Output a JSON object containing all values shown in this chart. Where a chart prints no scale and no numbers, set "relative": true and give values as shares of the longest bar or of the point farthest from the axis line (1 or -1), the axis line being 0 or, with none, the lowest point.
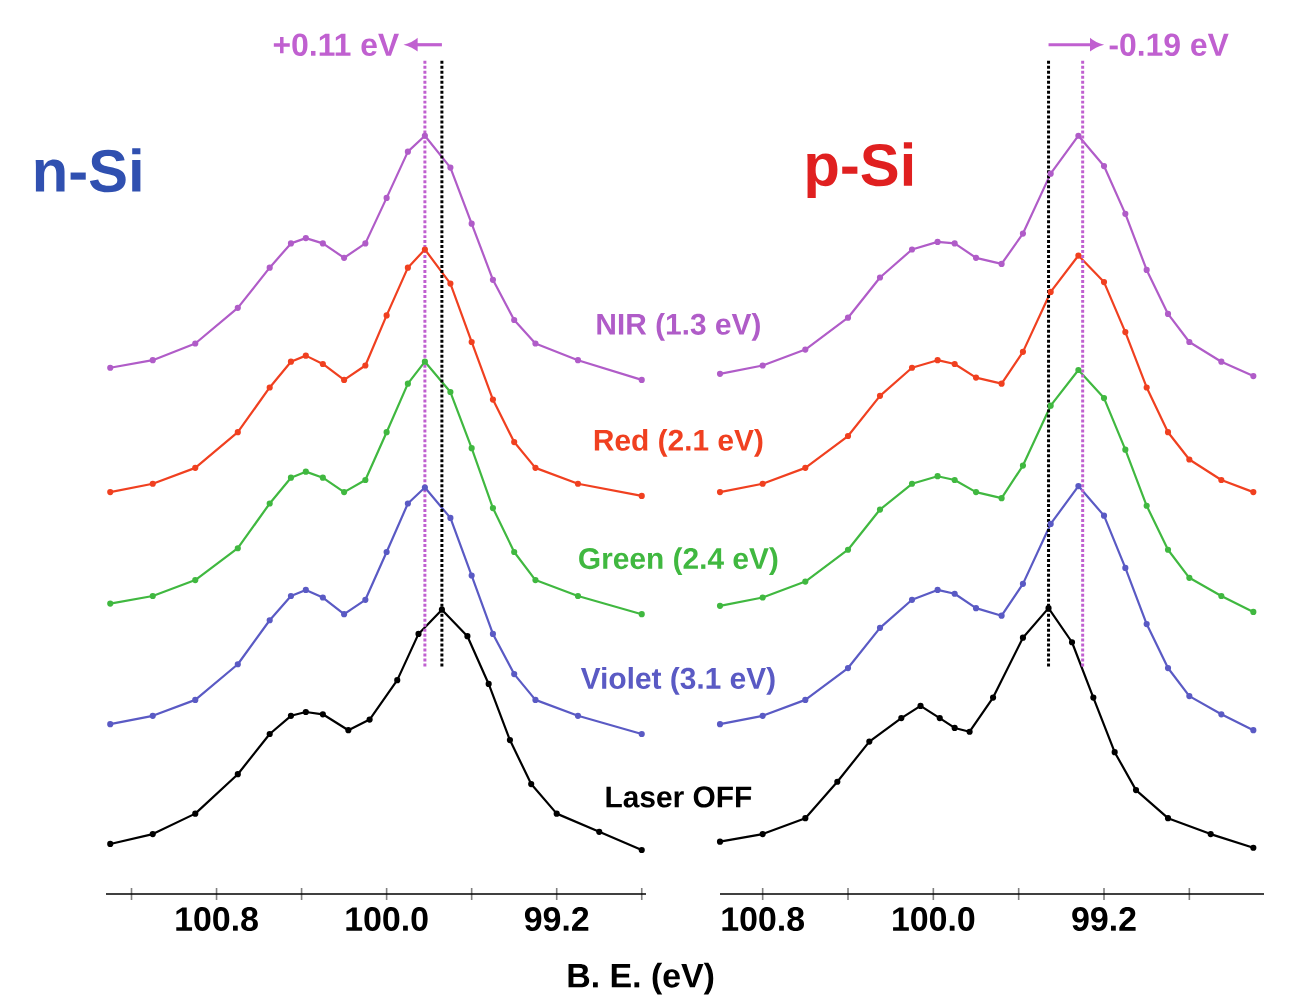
{
  "chart_data": [
    {
      "type": "line",
      "title": "n-Si",
      "xlabel": "B. E. (eV)",
      "relative": true,
      "marker": "circle",
      "line_style": "solid",
      "xlim": [
        101.32,
        98.78
      ],
      "xticks": [
        {
          "value": 101.2,
          "label": null
        },
        {
          "value": 100.8,
          "label": "100.8"
        },
        {
          "value": 100.4,
          "label": null
        },
        {
          "value": 100,
          "label": "100.0"
        },
        {
          "value": 99.6,
          "label": null
        },
        {
          "value": 99.2,
          "label": "99.2"
        },
        {
          "value": 98.8,
          "label": null
        }
      ],
      "x": [
        101.3,
        101.1,
        100.9,
        100.7,
        100.55,
        100.45,
        100.38,
        100.3,
        100.2,
        100.1,
        100.0,
        99.9,
        99.82,
        99.7,
        99.6,
        99.5,
        99.4,
        99.3,
        99.1,
        98.8
      ],
      "series": [
        {
          "name": "NIR (1.3 eV)",
          "color": "#b05cc8",
          "values": [
            0.694,
            0.704,
            0.726,
            0.773,
            0.826,
            0.858,
            0.865,
            0.858,
            0.839,
            0.858,
            0.918,
            0.979,
            1.0,
            0.958,
            0.884,
            0.81,
            0.757,
            0.726,
            0.704,
            0.678
          ]
        },
        {
          "name": "Red (2.1 eV)",
          "color": "#f04020",
          "values": [
            0.53,
            0.541,
            0.562,
            0.609,
            0.668,
            0.702,
            0.71,
            0.699,
            0.678,
            0.697,
            0.763,
            0.826,
            0.85,
            0.805,
            0.728,
            0.652,
            0.596,
            0.562,
            0.541,
            0.525
          ]
        },
        {
          "name": "Green (2.4 eV)",
          "color": "#40b840",
          "values": [
            0.383,
            0.393,
            0.414,
            0.456,
            0.515,
            0.549,
            0.557,
            0.549,
            0.53,
            0.546,
            0.609,
            0.673,
            0.702,
            0.662,
            0.588,
            0.509,
            0.451,
            0.414,
            0.393,
            0.369
          ]
        },
        {
          "name": "Violet (3.1 eV)",
          "color": "#5a5ac4",
          "values": [
            0.224,
            0.235,
            0.256,
            0.303,
            0.361,
            0.393,
            0.401,
            0.391,
            0.369,
            0.388,
            0.451,
            0.515,
            0.536,
            0.496,
            0.42,
            0.343,
            0.29,
            0.256,
            0.235,
            0.211
          ]
        },
        {
          "name": "Laser OFF",
          "color": "#000000",
          "x": [
            101.3,
            101.1,
            100.9,
            100.7,
            100.55,
            100.45,
            100.38,
            100.3,
            100.18,
            100.08,
            99.95,
            99.85,
            99.74,
            99.62,
            99.52,
            99.42,
            99.32,
            99.2,
            99.0,
            98.8
          ],
          "values": [
            0.066,
            0.079,
            0.106,
            0.158,
            0.211,
            0.235,
            0.24,
            0.237,
            0.216,
            0.23,
            0.282,
            0.343,
            0.375,
            0.34,
            0.277,
            0.203,
            0.145,
            0.106,
            0.082,
            0.058
          ]
        }
      ],
      "ref_lines": [
        {
          "axis": "x",
          "value": 99.74,
          "color": "#000000",
          "line_style": "dotted"
        },
        {
          "axis": "x",
          "value": 99.82,
          "color": "#c060d0",
          "line_style": "dotted"
        }
      ],
      "annotations": [
        "+0.11 eV"
      ]
    },
    {
      "type": "line",
      "title": "p-Si",
      "relative": true,
      "marker": "circle",
      "line_style": "solid",
      "xlim": [
        101.0,
        98.45
      ],
      "xticks": [
        {
          "value": 100.8,
          "label": "100.8"
        },
        {
          "value": 100.4,
          "label": null
        },
        {
          "value": 100,
          "label": "100.0"
        },
        {
          "value": 99.6,
          "label": null
        },
        {
          "value": 99.2,
          "label": "99.2"
        },
        {
          "value": 98.8,
          "label": null
        }
      ],
      "x": [
        101.0,
        100.8,
        100.6,
        100.4,
        100.25,
        100.1,
        99.98,
        99.9,
        99.8,
        99.68,
        99.58,
        99.45,
        99.32,
        99.2,
        99.1,
        99.0,
        98.9,
        98.8,
        98.65,
        98.5
      ],
      "series": [
        {
          "color": "#b05cc8",
          "values": [
            0.686,
            0.697,
            0.718,
            0.76,
            0.813,
            0.85,
            0.86,
            0.858,
            0.839,
            0.831,
            0.871,
            0.95,
            1.0,
            0.96,
            0.897,
            0.823,
            0.765,
            0.728,
            0.702,
            0.683
          ]
        },
        {
          "color": "#f04020",
          "values": [
            0.53,
            0.541,
            0.562,
            0.604,
            0.657,
            0.694,
            0.704,
            0.699,
            0.681,
            0.673,
            0.715,
            0.794,
            0.842,
            0.807,
            0.741,
            0.668,
            0.609,
            0.573,
            0.546,
            0.53
          ]
        },
        {
          "color": "#40b840",
          "values": [
            0.38,
            0.391,
            0.412,
            0.454,
            0.507,
            0.541,
            0.551,
            0.546,
            0.53,
            0.522,
            0.565,
            0.644,
            0.691,
            0.654,
            0.586,
            0.512,
            0.454,
            0.417,
            0.393,
            0.372
          ]
        },
        {
          "color": "#5a5ac4",
          "values": [
            0.224,
            0.235,
            0.256,
            0.298,
            0.351,
            0.388,
            0.401,
            0.396,
            0.377,
            0.367,
            0.409,
            0.488,
            0.538,
            0.499,
            0.43,
            0.356,
            0.298,
            0.261,
            0.237,
            0.216
          ]
        },
        {
          "color": "#000000",
          "x": [
            101.0,
            100.8,
            100.6,
            100.45,
            100.3,
            100.15,
            100.06,
            99.97,
            99.9,
            99.83,
            99.72,
            99.58,
            99.46,
            99.35,
            99.25,
            99.15,
            99.05,
            98.9,
            98.7,
            98.5
          ],
          "values": [
            0.069,
            0.079,
            0.1,
            0.148,
            0.201,
            0.232,
            0.248,
            0.232,
            0.219,
            0.214,
            0.259,
            0.338,
            0.377,
            0.332,
            0.259,
            0.187,
            0.137,
            0.1,
            0.079,
            0.061
          ]
        }
      ],
      "ref_lines": [
        {
          "axis": "x",
          "value": 99.46,
          "color": "#000000",
          "line_style": "dotted"
        },
        {
          "axis": "x",
          "value": 99.3,
          "color": "#c060d0",
          "line_style": "dotted"
        }
      ],
      "annotations": [
        "-0.19 eV"
      ]
    }
  ]
}
